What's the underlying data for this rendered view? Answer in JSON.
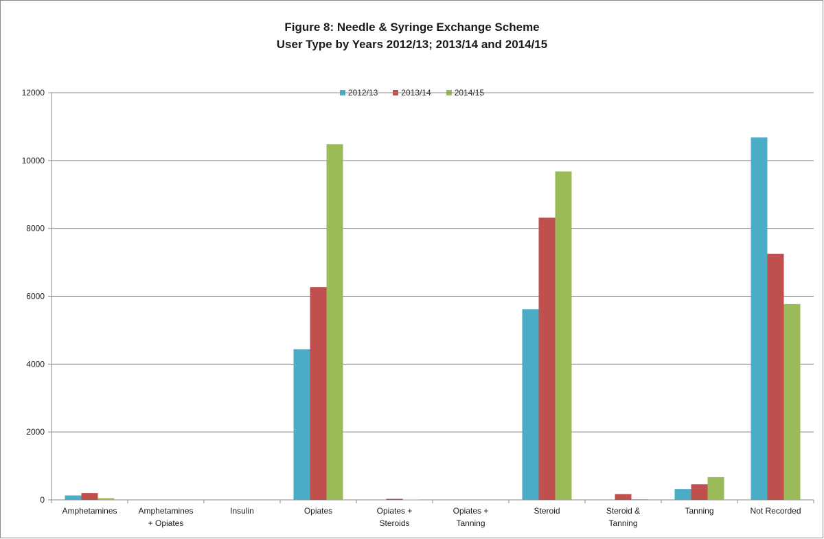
{
  "chart_data": {
    "type": "bar",
    "title": "Figure 8: Needle & Syringe Exchange Scheme",
    "subtitle": "User Type by Years 2012/13; 2013/14 and 2014/15",
    "xlabel": "",
    "ylabel": "",
    "ylim": [
      0,
      12000
    ],
    "yticks": [
      0,
      2000,
      4000,
      6000,
      8000,
      10000,
      12000
    ],
    "grid": true,
    "legend_position": "top",
    "categories": [
      [
        "Amphetamines"
      ],
      [
        "Amphetamines",
        "+ Opiates"
      ],
      [
        "Insulin"
      ],
      [
        "Opiates"
      ],
      [
        "Opiates +",
        "Steroids"
      ],
      [
        "Opiates +",
        "Tanning"
      ],
      [
        "Steroid"
      ],
      [
        "Steroid &",
        "Tanning"
      ],
      [
        "Tanning"
      ],
      [
        "Not Recorded"
      ]
    ],
    "series": [
      {
        "name": "2012/13",
        "color": "#4bacc6",
        "values": [
          130,
          0,
          0,
          4440,
          0,
          0,
          5620,
          0,
          320,
          10680
        ]
      },
      {
        "name": "2013/14",
        "color": "#c0504d",
        "values": [
          200,
          0,
          0,
          6270,
          30,
          0,
          8320,
          170,
          460,
          7250
        ]
      },
      {
        "name": "2014/15",
        "color": "#9bbb59",
        "values": [
          50,
          0,
          0,
          10480,
          10,
          0,
          9680,
          20,
          670,
          5770
        ]
      }
    ]
  }
}
